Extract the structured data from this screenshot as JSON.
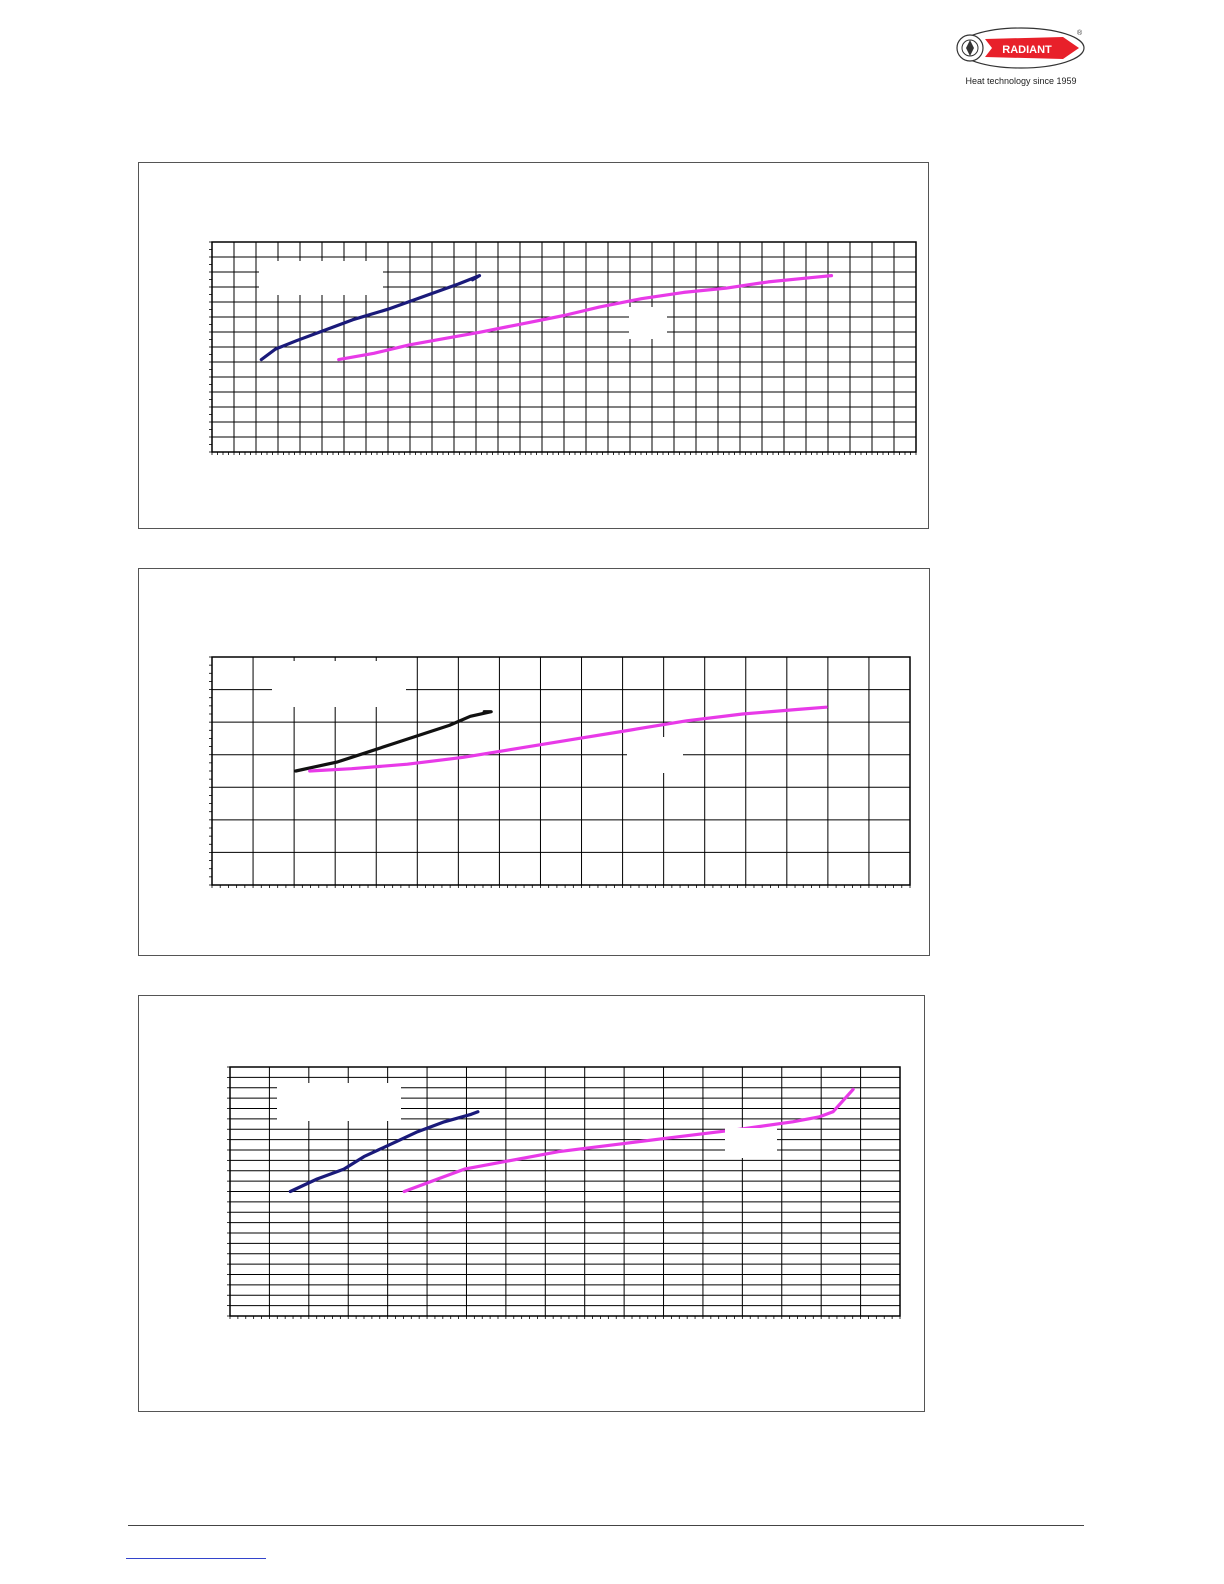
{
  "header": {
    "brand": "RADIANT",
    "tagline": "Heat technology since 1959",
    "brand_color": "#e8202a"
  },
  "chart_data": [
    {
      "type": "line",
      "title": "",
      "xlabel": "",
      "ylabel": "",
      "x_range": [
        0,
        100
      ],
      "y_range": [
        0,
        100
      ],
      "grid": true,
      "grid_density": "fine",
      "legend_patches": 2,
      "series": [
        {
          "color": "#1a1a7a",
          "points": [
            [
              7,
              44
            ],
            [
              9,
              49
            ],
            [
              12,
              53
            ],
            [
              16,
              58
            ],
            [
              20,
              63
            ],
            [
              25,
              68
            ],
            [
              30,
              74
            ],
            [
              35,
              80
            ],
            [
              38,
              84
            ],
            [
              37,
              82
            ]
          ]
        },
        {
          "color": "#e83ae8",
          "points": [
            [
              18,
              44
            ],
            [
              23,
              47
            ],
            [
              28,
              51
            ],
            [
              33,
              54
            ],
            [
              38,
              57
            ],
            [
              44,
              61
            ],
            [
              50,
              65
            ],
            [
              55,
              69
            ],
            [
              61,
              73
            ],
            [
              67,
              76
            ],
            [
              73,
              78
            ],
            [
              79,
              81
            ],
            [
              85,
              83
            ],
            [
              88,
              84
            ]
          ]
        }
      ]
    },
    {
      "type": "line",
      "title": "",
      "xlabel": "",
      "ylabel": "",
      "x_range": [
        0,
        100
      ],
      "y_range": [
        0,
        100
      ],
      "grid": true,
      "grid_density": "coarse",
      "legend_patches": 2,
      "series": [
        {
          "color": "#111111",
          "points": [
            [
              12,
              50
            ],
            [
              15,
              52
            ],
            [
              18,
              54
            ],
            [
              22,
              58
            ],
            [
              26,
              62
            ],
            [
              30,
              66
            ],
            [
              34,
              70
            ],
            [
              37,
              74
            ],
            [
              40,
              76
            ],
            [
              39,
              76
            ]
          ]
        },
        {
          "color": "#e83ae8",
          "points": [
            [
              14,
              50
            ],
            [
              20,
              51
            ],
            [
              28,
              53
            ],
            [
              36,
              56
            ],
            [
              44,
              60
            ],
            [
              52,
              64
            ],
            [
              60,
              68
            ],
            [
              68,
              72
            ],
            [
              76,
              75
            ],
            [
              84,
              77
            ],
            [
              88,
              78
            ]
          ]
        }
      ]
    },
    {
      "type": "line",
      "title": "",
      "xlabel": "",
      "ylabel": "",
      "x_range": [
        0,
        100
      ],
      "y_range": [
        0,
        100
      ],
      "grid": true,
      "grid_density": "medium",
      "legend_patches": 2,
      "series": [
        {
          "color": "#1a1a7a",
          "points": [
            [
              9,
              50
            ],
            [
              13,
              55
            ],
            [
              17,
              59
            ],
            [
              20,
              64
            ],
            [
              24,
              69
            ],
            [
              28,
              74
            ],
            [
              32,
              78
            ],
            [
              36,
              81
            ],
            [
              37,
              82
            ]
          ]
        },
        {
          "color": "#e83ae8",
          "points": [
            [
              26,
              50
            ],
            [
              31,
              55
            ],
            [
              35,
              59
            ],
            [
              41,
              62
            ],
            [
              49,
              66
            ],
            [
              58,
              69
            ],
            [
              67,
              72
            ],
            [
              76,
              75
            ],
            [
              84,
              78
            ],
            [
              88,
              80
            ],
            [
              90,
              82
            ],
            [
              93,
              91
            ]
          ]
        }
      ]
    }
  ]
}
